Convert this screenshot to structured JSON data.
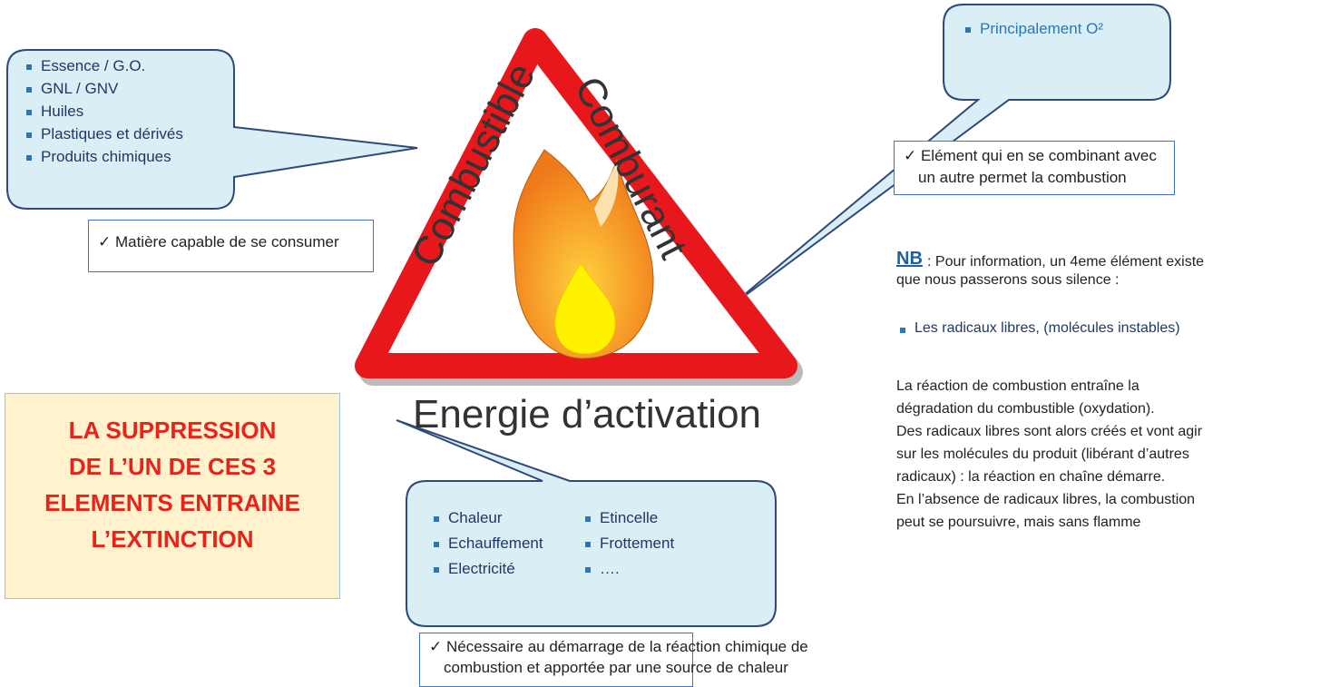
{
  "left_callout": {
    "items": [
      "Essence / G.O.",
      "GNL / GNV",
      "Huiles",
      "Plastiques et dérivés",
      "Produits chimiques"
    ]
  },
  "left_note": "✓ Matière capable de se consumer",
  "triangle": {
    "left_label": "Combustible",
    "right_label": "Comburant",
    "bottom_label": "Energie d’activation"
  },
  "right_callout": {
    "items": [
      "Principalement O²"
    ]
  },
  "right_note": {
    "lines": [
      "✓ Elément qui en se combinant avec",
      "un autre permet la combustion"
    ]
  },
  "warning": {
    "lines": [
      "LA SUPPRESSION",
      "DE L’UN DE CES 3",
      "ELEMENTS ENTRAINE",
      "L’EXTINCTION"
    ]
  },
  "bottom_callout": {
    "columns": [
      [
        "Chaleur",
        "Echauffement",
        "Electricité"
      ],
      [
        "Etincelle",
        "Frottement",
        "…."
      ]
    ]
  },
  "bottom_note": {
    "lines": [
      "✓ Nécessaire au démarrage de la réaction chimique de",
      "combustion et apportée par une source de chaleur"
    ]
  },
  "nb": {
    "label": "NB",
    "lines": [
      " : Pour information, un 4eme élément existe",
      "que nous passerons sous silence :"
    ],
    "bullet": "Les radicaux libres, (molécules instables)",
    "paragraph": [
      "La réaction de combustion entraîne la",
      "dégradation du combustible (oxydation).",
      "Des radicaux libres sont alors créés et vont agir",
      "sur les molécules du produit (libérant d’autres",
      "radicaux) : la réaction en chaîne démarre.",
      "En l’absence de radicaux libres, la combustion",
      "peut se poursuivre, mais sans flamme"
    ]
  }
}
